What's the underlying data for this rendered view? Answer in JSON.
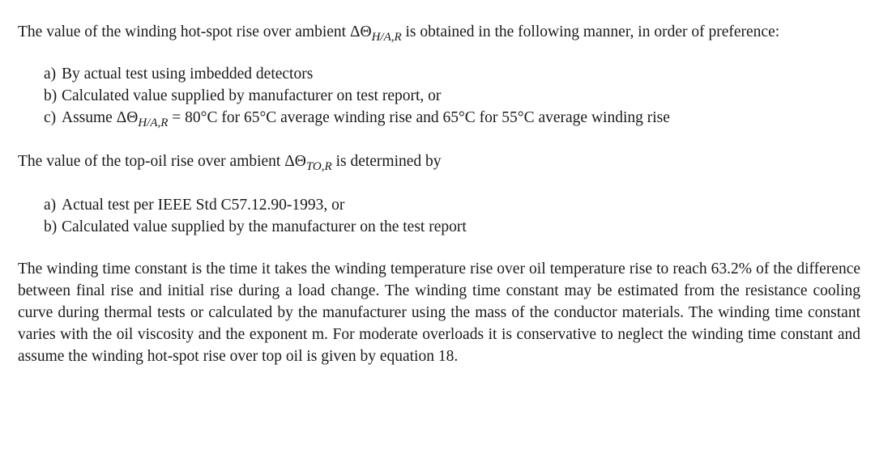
{
  "para1": {
    "pre": "The value of the winding hot-spot rise over ambient ΔΘ",
    "sub": "H/A,R",
    "post": " is obtained in the following manner, in order of preference:"
  },
  "list1": [
    {
      "marker": "a)",
      "text": "By actual test using imbedded detectors"
    },
    {
      "marker": "b)",
      "text": "Calculated value supplied by manufacturer on test report, or"
    },
    {
      "marker": "c)",
      "pre": "Assume ΔΘ",
      "sub": "H/A,R",
      "post": " = 80°C for 65°C average winding rise and 65°C for 55°C average winding rise"
    }
  ],
  "para2": {
    "pre": "The value of the top-oil rise over ambient ΔΘ",
    "sub": "TO,R",
    "post": " is determined by"
  },
  "list2": [
    {
      "marker": "a)",
      "text": "Actual test per IEEE Std C57.12.90-1993, or"
    },
    {
      "marker": "b)",
      "text": "Calculated value supplied by the manufacturer on the test report"
    }
  ],
  "para3": "The winding time constant is the time it takes the winding temperature rise over oil temperature rise to reach 63.2% of the difference between final rise and initial rise during a load change. The winding time constant may be estimated from the resistance cooling curve during thermal tests or calculated by the manufacturer using the mass of the conductor materials. The winding time constant varies with the oil viscosity and the exponent m. For moderate overloads it is conservative to neglect the winding time constant and assume the winding hot-spot rise over top oil is given by equation 18."
}
